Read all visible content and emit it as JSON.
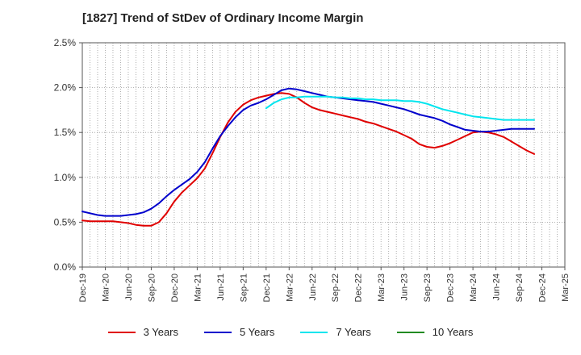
{
  "chart_data": {
    "type": "line",
    "title": "[1827]  Trend of StDev of Ordinary Income Margin",
    "xlabel": "",
    "ylabel": "",
    "x_ticks": [
      "Dec-19",
      "Mar-20",
      "Jun-20",
      "Sep-20",
      "Dec-20",
      "Mar-21",
      "Jun-21",
      "Sep-21",
      "Dec-21",
      "Mar-22",
      "Jun-22",
      "Sep-22",
      "Dec-22",
      "Mar-23",
      "Jun-23",
      "Sep-23",
      "Dec-23",
      "Mar-24",
      "Jun-24",
      "Sep-24",
      "Dec-24",
      "Mar-25"
    ],
    "y_ticks": [
      "0.0%",
      "0.5%",
      "1.0%",
      "1.5%",
      "2.0%",
      "2.5%"
    ],
    "ylim": [
      0,
      2.5
    ],
    "y_unit": "%",
    "grid": true,
    "legend_position": "bottom",
    "series": [
      {
        "name": "3 Years",
        "color": "#e00000",
        "points": [
          [
            "Dec-19",
            0.52
          ],
          [
            "Jan-20",
            0.51
          ],
          [
            "Feb-20",
            0.51
          ],
          [
            "Mar-20",
            0.51
          ],
          [
            "Apr-20",
            0.51
          ],
          [
            "May-20",
            0.5
          ],
          [
            "Jun-20",
            0.49
          ],
          [
            "Jul-20",
            0.47
          ],
          [
            "Aug-20",
            0.46
          ],
          [
            "Sep-20",
            0.46
          ],
          [
            "Oct-20",
            0.5
          ],
          [
            "Nov-20",
            0.6
          ],
          [
            "Dec-20",
            0.73
          ],
          [
            "Jan-21",
            0.83
          ],
          [
            "Feb-21",
            0.91
          ],
          [
            "Mar-21",
            0.99
          ],
          [
            "Apr-21",
            1.1
          ],
          [
            "May-21",
            1.27
          ],
          [
            "Jun-21",
            1.45
          ],
          [
            "Jul-21",
            1.61
          ],
          [
            "Aug-21",
            1.73
          ],
          [
            "Sep-21",
            1.81
          ],
          [
            "Oct-21",
            1.86
          ],
          [
            "Nov-21",
            1.89
          ],
          [
            "Dec-21",
            1.91
          ],
          [
            "Jan-22",
            1.93
          ],
          [
            "Feb-22",
            1.94
          ],
          [
            "Mar-22",
            1.93
          ],
          [
            "Apr-22",
            1.89
          ],
          [
            "May-22",
            1.83
          ],
          [
            "Jun-22",
            1.78
          ],
          [
            "Jul-22",
            1.75
          ],
          [
            "Aug-22",
            1.73
          ],
          [
            "Sep-22",
            1.71
          ],
          [
            "Oct-22",
            1.69
          ],
          [
            "Nov-22",
            1.67
          ],
          [
            "Dec-22",
            1.65
          ],
          [
            "Jan-23",
            1.62
          ],
          [
            "Feb-23",
            1.6
          ],
          [
            "Mar-23",
            1.57
          ],
          [
            "Apr-23",
            1.54
          ],
          [
            "May-23",
            1.51
          ],
          [
            "Jun-23",
            1.47
          ],
          [
            "Jul-23",
            1.43
          ],
          [
            "Aug-23",
            1.37
          ],
          [
            "Sep-23",
            1.34
          ],
          [
            "Oct-23",
            1.33
          ],
          [
            "Nov-23",
            1.35
          ],
          [
            "Dec-23",
            1.38
          ],
          [
            "Jan-24",
            1.42
          ],
          [
            "Feb-24",
            1.46
          ],
          [
            "Mar-24",
            1.5
          ],
          [
            "Apr-24",
            1.51
          ],
          [
            "May-24",
            1.5
          ],
          [
            "Jun-24",
            1.48
          ],
          [
            "Jul-24",
            1.45
          ],
          [
            "Aug-24",
            1.4
          ],
          [
            "Sep-24",
            1.35
          ],
          [
            "Oct-24",
            1.3
          ],
          [
            "Nov-24",
            1.26
          ]
        ]
      },
      {
        "name": "5 Years",
        "color": "#0000cc",
        "points": [
          [
            "Dec-19",
            0.62
          ],
          [
            "Jan-20",
            0.6
          ],
          [
            "Feb-20",
            0.58
          ],
          [
            "Mar-20",
            0.57
          ],
          [
            "Apr-20",
            0.57
          ],
          [
            "May-20",
            0.57
          ],
          [
            "Jun-20",
            0.58
          ],
          [
            "Jul-20",
            0.59
          ],
          [
            "Aug-20",
            0.61
          ],
          [
            "Sep-20",
            0.65
          ],
          [
            "Oct-20",
            0.71
          ],
          [
            "Nov-20",
            0.79
          ],
          [
            "Dec-20",
            0.86
          ],
          [
            "Jan-21",
            0.92
          ],
          [
            "Feb-21",
            0.98
          ],
          [
            "Mar-21",
            1.06
          ],
          [
            "Apr-21",
            1.17
          ],
          [
            "May-21",
            1.32
          ],
          [
            "Jun-21",
            1.46
          ],
          [
            "Jul-21",
            1.57
          ],
          [
            "Aug-21",
            1.67
          ],
          [
            "Sep-21",
            1.75
          ],
          [
            "Oct-21",
            1.8
          ],
          [
            "Nov-21",
            1.83
          ],
          [
            "Dec-21",
            1.87
          ],
          [
            "Jan-22",
            1.92
          ],
          [
            "Feb-22",
            1.97
          ],
          [
            "Mar-22",
            1.99
          ],
          [
            "Apr-22",
            1.98
          ],
          [
            "May-22",
            1.96
          ],
          [
            "Jun-22",
            1.94
          ],
          [
            "Jul-22",
            1.92
          ],
          [
            "Aug-22",
            1.9
          ],
          [
            "Sep-22",
            1.89
          ],
          [
            "Oct-22",
            1.88
          ],
          [
            "Nov-22",
            1.87
          ],
          [
            "Dec-22",
            1.86
          ],
          [
            "Jan-23",
            1.85
          ],
          [
            "Feb-23",
            1.84
          ],
          [
            "Mar-23",
            1.82
          ],
          [
            "Apr-23",
            1.8
          ],
          [
            "May-23",
            1.78
          ],
          [
            "Jun-23",
            1.76
          ],
          [
            "Jul-23",
            1.73
          ],
          [
            "Aug-23",
            1.7
          ],
          [
            "Sep-23",
            1.68
          ],
          [
            "Oct-23",
            1.66
          ],
          [
            "Nov-23",
            1.63
          ],
          [
            "Dec-23",
            1.59
          ],
          [
            "Jan-24",
            1.56
          ],
          [
            "Feb-24",
            1.53
          ],
          [
            "Mar-24",
            1.52
          ],
          [
            "Apr-24",
            1.51
          ],
          [
            "May-24",
            1.51
          ],
          [
            "Jun-24",
            1.52
          ],
          [
            "Jul-24",
            1.53
          ],
          [
            "Aug-24",
            1.54
          ],
          [
            "Sep-24",
            1.54
          ],
          [
            "Oct-24",
            1.54
          ],
          [
            "Nov-24",
            1.54
          ]
        ]
      },
      {
        "name": "7 Years",
        "color": "#00e5ee",
        "points": [
          [
            "Dec-21",
            1.77
          ],
          [
            "Jan-22",
            1.83
          ],
          [
            "Feb-22",
            1.87
          ],
          [
            "Mar-22",
            1.89
          ],
          [
            "Apr-22",
            1.89
          ],
          [
            "May-22",
            1.9
          ],
          [
            "Jun-22",
            1.9
          ],
          [
            "Jul-22",
            1.9
          ],
          [
            "Aug-22",
            1.9
          ],
          [
            "Sep-22",
            1.89
          ],
          [
            "Oct-22",
            1.89
          ],
          [
            "Nov-22",
            1.88
          ],
          [
            "Dec-22",
            1.88
          ],
          [
            "Jan-23",
            1.87
          ],
          [
            "Feb-23",
            1.87
          ],
          [
            "Mar-23",
            1.86
          ],
          [
            "Apr-23",
            1.86
          ],
          [
            "May-23",
            1.86
          ],
          [
            "Jun-23",
            1.85
          ],
          [
            "Jul-23",
            1.85
          ],
          [
            "Aug-23",
            1.84
          ],
          [
            "Sep-23",
            1.82
          ],
          [
            "Oct-23",
            1.79
          ],
          [
            "Nov-23",
            1.76
          ],
          [
            "Dec-23",
            1.74
          ],
          [
            "Jan-24",
            1.72
          ],
          [
            "Feb-24",
            1.7
          ],
          [
            "Mar-24",
            1.68
          ],
          [
            "Apr-24",
            1.67
          ],
          [
            "May-24",
            1.66
          ],
          [
            "Jun-24",
            1.65
          ],
          [
            "Jul-24",
            1.64
          ],
          [
            "Aug-24",
            1.64
          ],
          [
            "Sep-24",
            1.64
          ],
          [
            "Oct-24",
            1.64
          ],
          [
            "Nov-24",
            1.64
          ]
        ]
      },
      {
        "name": "10 Years",
        "color": "#228b22",
        "points": []
      }
    ]
  }
}
